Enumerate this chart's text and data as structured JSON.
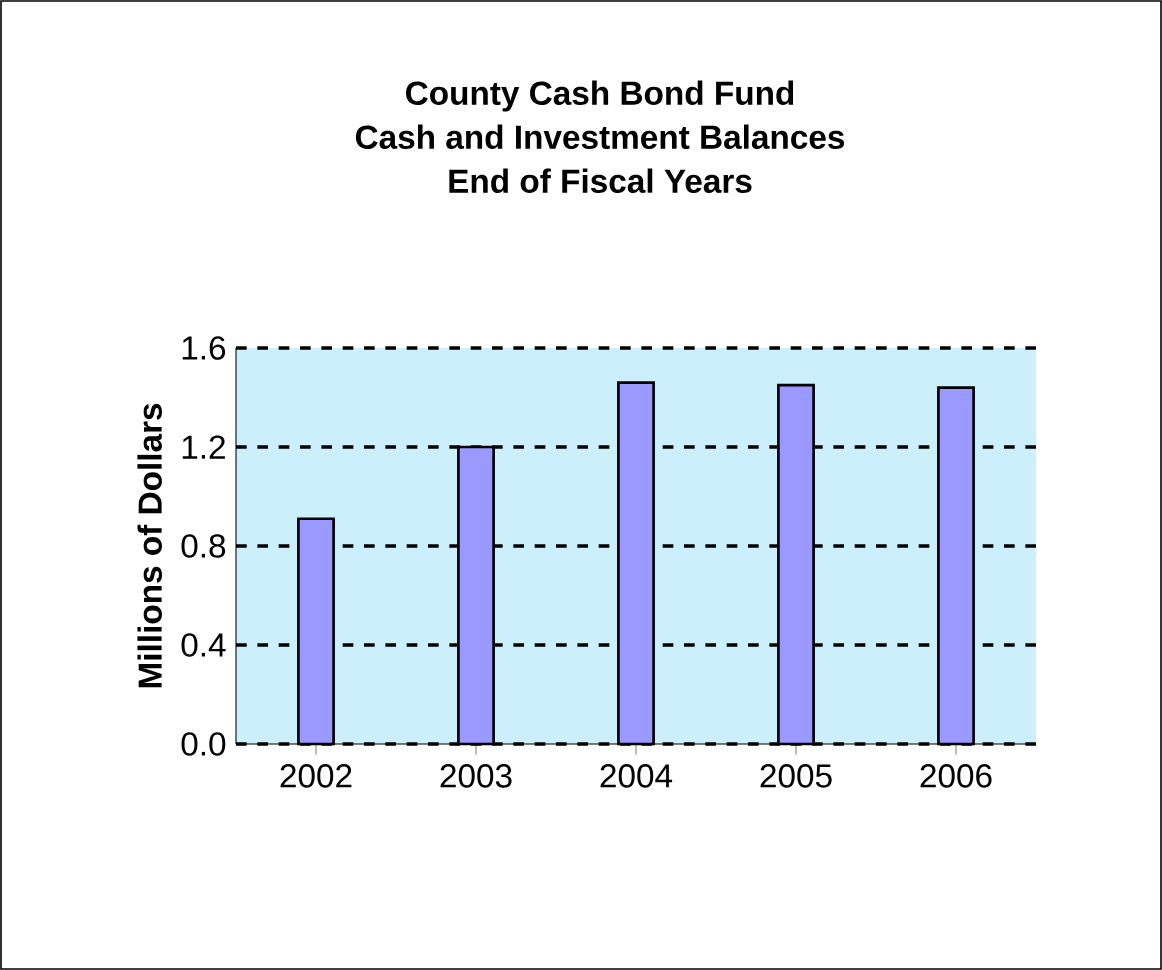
{
  "chart_data": {
    "type": "bar",
    "title": "County Cash Bond Fund\nCash and Investment Balances\nEnd of Fiscal Years",
    "ylabel": "Millions of Dollars",
    "categories": [
      "2002",
      "2003",
      "2004",
      "2005",
      "2006"
    ],
    "values": [
      0.91,
      1.2,
      1.46,
      1.45,
      1.44
    ],
    "color": "#9999ff",
    "ylim": [
      0,
      1.6
    ],
    "yticks": [
      {
        "value": 0,
        "label": "0.0"
      },
      {
        "value": 0.4,
        "label": "0.4"
      },
      {
        "value": 0.8,
        "label": "0.8"
      },
      {
        "value": 1.2,
        "label": "1.2"
      },
      {
        "value": 1.6,
        "label": "1.6"
      }
    ],
    "grid": "y"
  }
}
